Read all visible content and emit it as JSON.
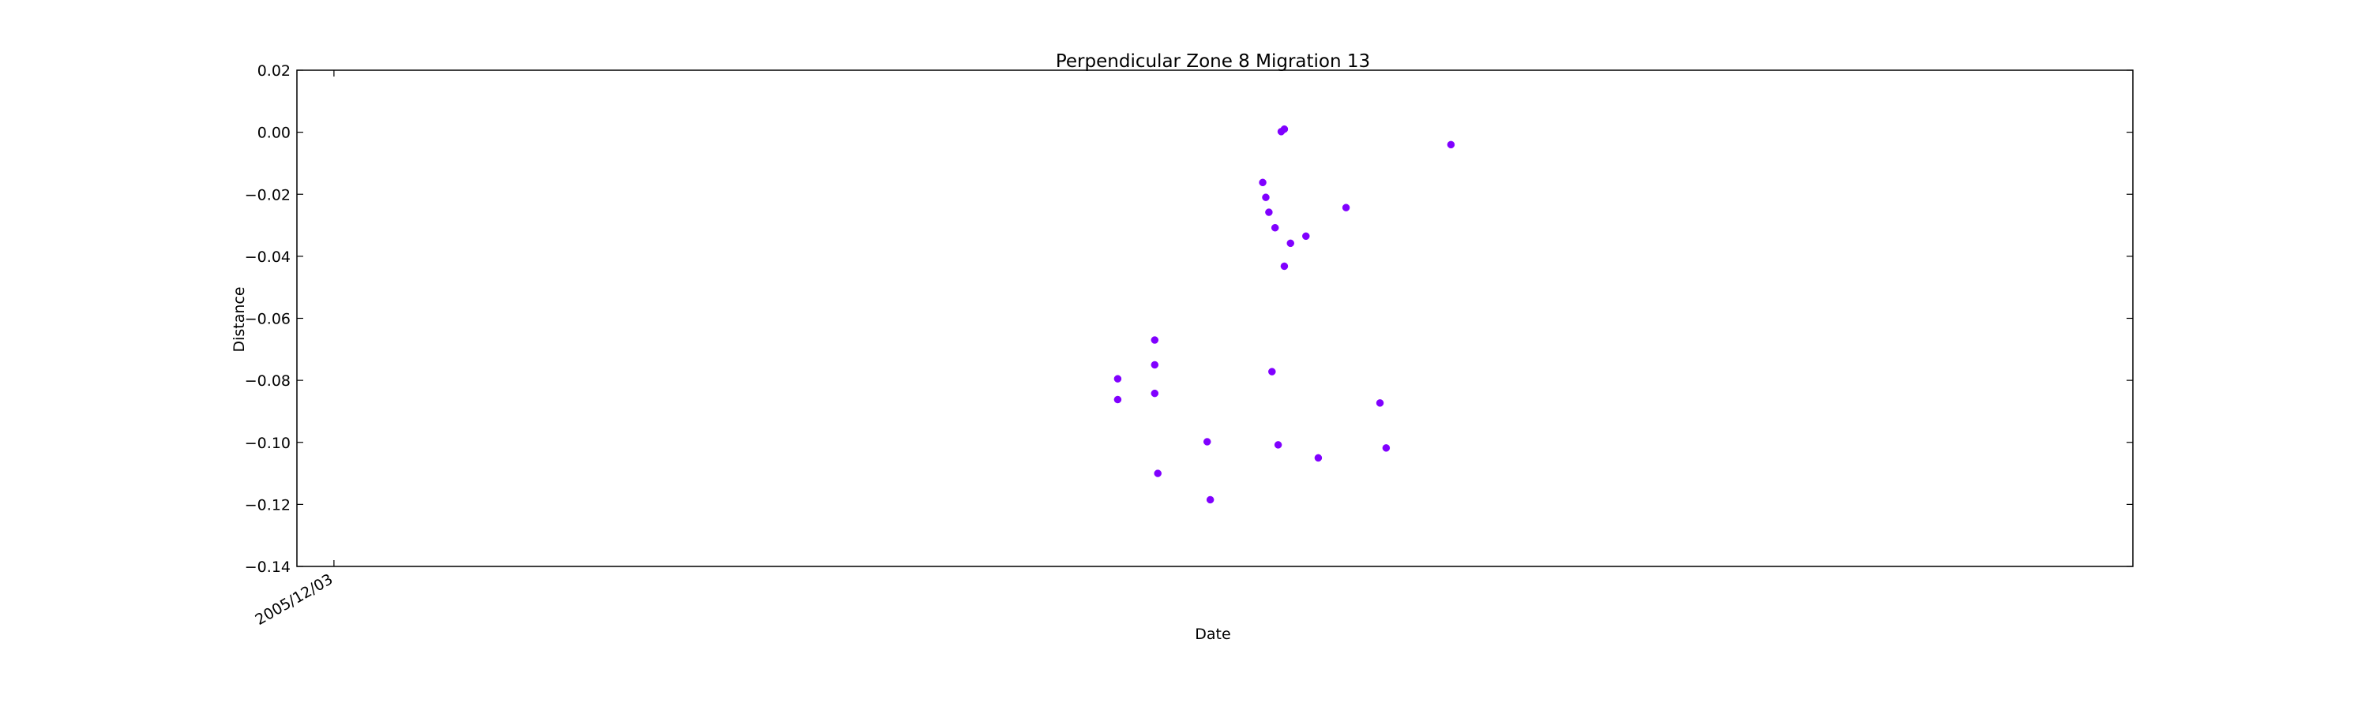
{
  "chart_data": {
    "type": "scatter",
    "title": "Perpendicular Zone 8 Migration 13",
    "xlabel": "Date",
    "ylabel": "Distance",
    "ylim": [
      -0.14,
      0.02
    ],
    "y_ticks": [
      0.02,
      0.0,
      -0.02,
      -0.04,
      -0.06,
      -0.08,
      -0.1,
      -0.12,
      -0.14
    ],
    "y_tick_labels": [
      "0.02",
      "0.00",
      "−0.02",
      "−0.04",
      "−0.06",
      "−0.08",
      "−0.10",
      "−0.12",
      "−0.14"
    ],
    "xlim": [
      "2005-11-21",
      "2007-07-09"
    ],
    "x_ticks": [
      "2005-12-03"
    ],
    "x_tick_labels": [
      "2005/12/03"
    ],
    "grid": false,
    "marker_color": "#8000ff",
    "series": [
      {
        "points": [
          {
            "x": "2006-08-14",
            "y": -0.0795
          },
          {
            "x": "2006-08-14",
            "y": -0.0862
          },
          {
            "x": "2006-08-26",
            "y": -0.067
          },
          {
            "x": "2006-08-26",
            "y": -0.075
          },
          {
            "x": "2006-08-26",
            "y": -0.0842
          },
          {
            "x": "2006-08-27",
            "y": -0.11
          },
          {
            "x": "2006-09-12",
            "y": -0.0998
          },
          {
            "x": "2006-09-13",
            "y": -0.1185
          },
          {
            "x": "2006-09-30",
            "y": -0.0162
          },
          {
            "x": "2006-10-01",
            "y": -0.021
          },
          {
            "x": "2006-10-02",
            "y": -0.0258
          },
          {
            "x": "2006-10-03",
            "y": -0.0772
          },
          {
            "x": "2006-10-04",
            "y": -0.0308
          },
          {
            "x": "2006-10-05",
            "y": -0.1008
          },
          {
            "x": "2006-10-06",
            "y": 0.0002
          },
          {
            "x": "2006-10-07",
            "y": 0.001
          },
          {
            "x": "2006-10-07",
            "y": -0.0432
          },
          {
            "x": "2006-10-09",
            "y": -0.0358
          },
          {
            "x": "2006-10-14",
            "y": -0.0335
          },
          {
            "x": "2006-10-18",
            "y": -0.105
          },
          {
            "x": "2006-10-27",
            "y": -0.0243
          },
          {
            "x": "2006-11-07",
            "y": -0.0873
          },
          {
            "x": "2006-11-09",
            "y": -0.1018
          },
          {
            "x": "2006-11-30",
            "y": -0.004
          }
        ]
      }
    ]
  }
}
